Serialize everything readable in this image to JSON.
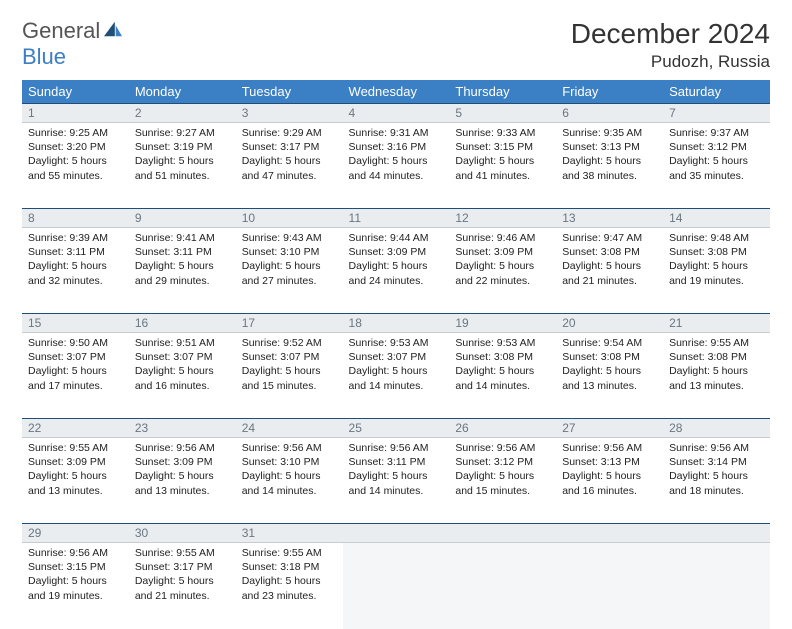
{
  "brand": {
    "general": "General",
    "blue": "Blue"
  },
  "title": "December 2024",
  "location": "Pudozh, Russia",
  "colors": {
    "header_bg": "#3b7fc4",
    "header_text": "#ffffff",
    "daynum_bg": "#e9edf0",
    "daynum_border_top": "#1f4e79",
    "daynum_text": "#6b7680",
    "body_text": "#222222",
    "page_bg": "#ffffff"
  },
  "weekdays": [
    "Sunday",
    "Monday",
    "Tuesday",
    "Wednesday",
    "Thursday",
    "Friday",
    "Saturday"
  ],
  "weeks": [
    [
      {
        "n": "1",
        "sr": "Sunrise: 9:25 AM",
        "ss": "Sunset: 3:20 PM",
        "dl": "Daylight: 5 hours and 55 minutes."
      },
      {
        "n": "2",
        "sr": "Sunrise: 9:27 AM",
        "ss": "Sunset: 3:19 PM",
        "dl": "Daylight: 5 hours and 51 minutes."
      },
      {
        "n": "3",
        "sr": "Sunrise: 9:29 AM",
        "ss": "Sunset: 3:17 PM",
        "dl": "Daylight: 5 hours and 47 minutes."
      },
      {
        "n": "4",
        "sr": "Sunrise: 9:31 AM",
        "ss": "Sunset: 3:16 PM",
        "dl": "Daylight: 5 hours and 44 minutes."
      },
      {
        "n": "5",
        "sr": "Sunrise: 9:33 AM",
        "ss": "Sunset: 3:15 PM",
        "dl": "Daylight: 5 hours and 41 minutes."
      },
      {
        "n": "6",
        "sr": "Sunrise: 9:35 AM",
        "ss": "Sunset: 3:13 PM",
        "dl": "Daylight: 5 hours and 38 minutes."
      },
      {
        "n": "7",
        "sr": "Sunrise: 9:37 AM",
        "ss": "Sunset: 3:12 PM",
        "dl": "Daylight: 5 hours and 35 minutes."
      }
    ],
    [
      {
        "n": "8",
        "sr": "Sunrise: 9:39 AM",
        "ss": "Sunset: 3:11 PM",
        "dl": "Daylight: 5 hours and 32 minutes."
      },
      {
        "n": "9",
        "sr": "Sunrise: 9:41 AM",
        "ss": "Sunset: 3:11 PM",
        "dl": "Daylight: 5 hours and 29 minutes."
      },
      {
        "n": "10",
        "sr": "Sunrise: 9:43 AM",
        "ss": "Sunset: 3:10 PM",
        "dl": "Daylight: 5 hours and 27 minutes."
      },
      {
        "n": "11",
        "sr": "Sunrise: 9:44 AM",
        "ss": "Sunset: 3:09 PM",
        "dl": "Daylight: 5 hours and 24 minutes."
      },
      {
        "n": "12",
        "sr": "Sunrise: 9:46 AM",
        "ss": "Sunset: 3:09 PM",
        "dl": "Daylight: 5 hours and 22 minutes."
      },
      {
        "n": "13",
        "sr": "Sunrise: 9:47 AM",
        "ss": "Sunset: 3:08 PM",
        "dl": "Daylight: 5 hours and 21 minutes."
      },
      {
        "n": "14",
        "sr": "Sunrise: 9:48 AM",
        "ss": "Sunset: 3:08 PM",
        "dl": "Daylight: 5 hours and 19 minutes."
      }
    ],
    [
      {
        "n": "15",
        "sr": "Sunrise: 9:50 AM",
        "ss": "Sunset: 3:07 PM",
        "dl": "Daylight: 5 hours and 17 minutes."
      },
      {
        "n": "16",
        "sr": "Sunrise: 9:51 AM",
        "ss": "Sunset: 3:07 PM",
        "dl": "Daylight: 5 hours and 16 minutes."
      },
      {
        "n": "17",
        "sr": "Sunrise: 9:52 AM",
        "ss": "Sunset: 3:07 PM",
        "dl": "Daylight: 5 hours and 15 minutes."
      },
      {
        "n": "18",
        "sr": "Sunrise: 9:53 AM",
        "ss": "Sunset: 3:07 PM",
        "dl": "Daylight: 5 hours and 14 minutes."
      },
      {
        "n": "19",
        "sr": "Sunrise: 9:53 AM",
        "ss": "Sunset: 3:08 PM",
        "dl": "Daylight: 5 hours and 14 minutes."
      },
      {
        "n": "20",
        "sr": "Sunrise: 9:54 AM",
        "ss": "Sunset: 3:08 PM",
        "dl": "Daylight: 5 hours and 13 minutes."
      },
      {
        "n": "21",
        "sr": "Sunrise: 9:55 AM",
        "ss": "Sunset: 3:08 PM",
        "dl": "Daylight: 5 hours and 13 minutes."
      }
    ],
    [
      {
        "n": "22",
        "sr": "Sunrise: 9:55 AM",
        "ss": "Sunset: 3:09 PM",
        "dl": "Daylight: 5 hours and 13 minutes."
      },
      {
        "n": "23",
        "sr": "Sunrise: 9:56 AM",
        "ss": "Sunset: 3:09 PM",
        "dl": "Daylight: 5 hours and 13 minutes."
      },
      {
        "n": "24",
        "sr": "Sunrise: 9:56 AM",
        "ss": "Sunset: 3:10 PM",
        "dl": "Daylight: 5 hours and 14 minutes."
      },
      {
        "n": "25",
        "sr": "Sunrise: 9:56 AM",
        "ss": "Sunset: 3:11 PM",
        "dl": "Daylight: 5 hours and 14 minutes."
      },
      {
        "n": "26",
        "sr": "Sunrise: 9:56 AM",
        "ss": "Sunset: 3:12 PM",
        "dl": "Daylight: 5 hours and 15 minutes."
      },
      {
        "n": "27",
        "sr": "Sunrise: 9:56 AM",
        "ss": "Sunset: 3:13 PM",
        "dl": "Daylight: 5 hours and 16 minutes."
      },
      {
        "n": "28",
        "sr": "Sunrise: 9:56 AM",
        "ss": "Sunset: 3:14 PM",
        "dl": "Daylight: 5 hours and 18 minutes."
      }
    ],
    [
      {
        "n": "29",
        "sr": "Sunrise: 9:56 AM",
        "ss": "Sunset: 3:15 PM",
        "dl": "Daylight: 5 hours and 19 minutes."
      },
      {
        "n": "30",
        "sr": "Sunrise: 9:55 AM",
        "ss": "Sunset: 3:17 PM",
        "dl": "Daylight: 5 hours and 21 minutes."
      },
      {
        "n": "31",
        "sr": "Sunrise: 9:55 AM",
        "ss": "Sunset: 3:18 PM",
        "dl": "Daylight: 5 hours and 23 minutes."
      },
      null,
      null,
      null,
      null
    ]
  ]
}
